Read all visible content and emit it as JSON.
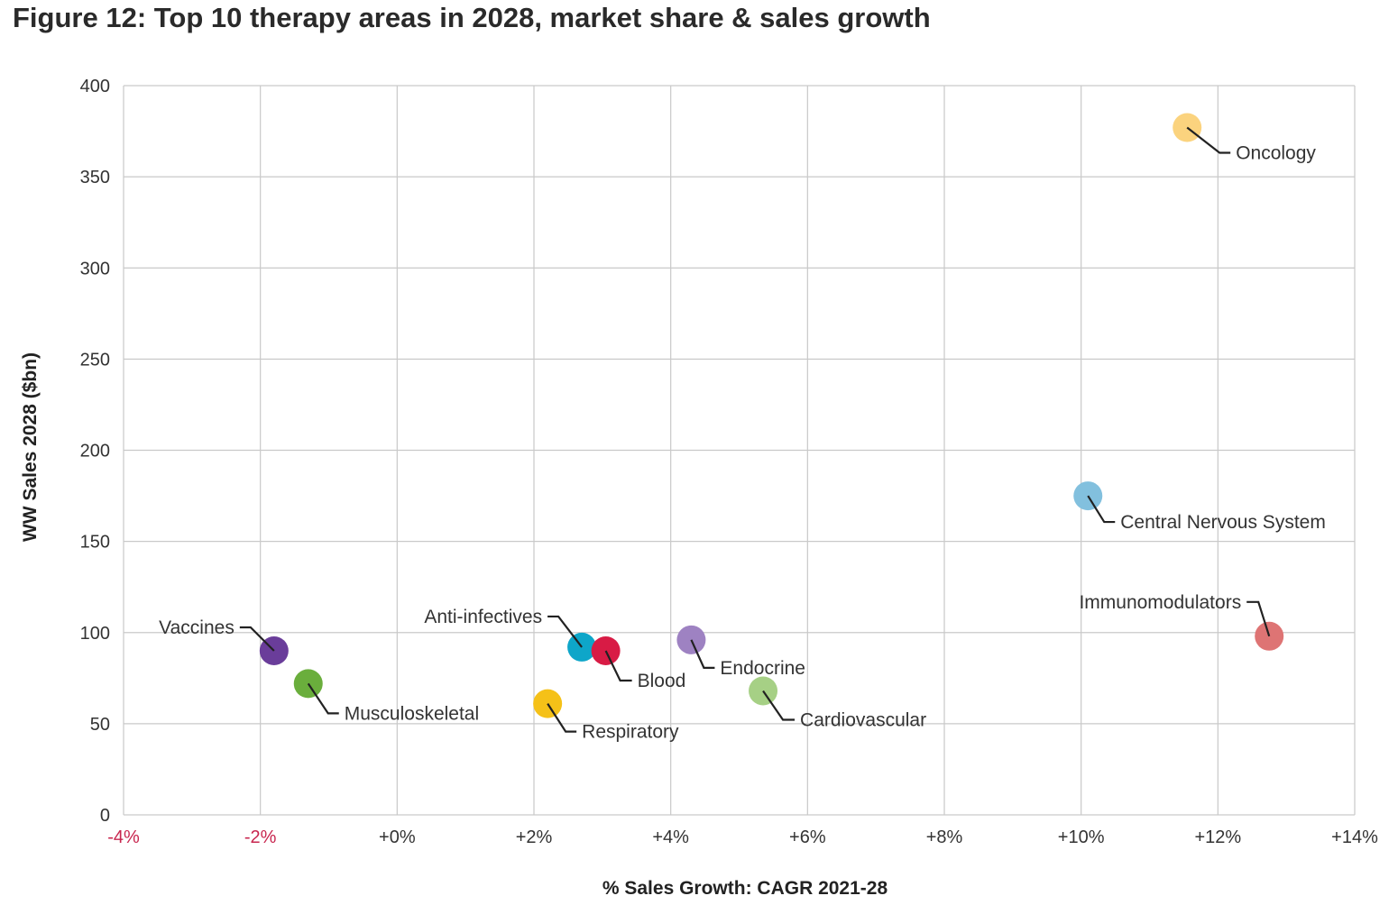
{
  "figure": {
    "title": "Figure 12: Top 10 therapy areas in 2028, market share & sales growth"
  },
  "chart_data": {
    "type": "scatter",
    "title": "Figure 12: Top 10 therapy areas in 2028, market share & sales growth",
    "xlabel": "% Sales Growth: CAGR 2021-28",
    "ylabel": "WW Sales 2028 ($bn)",
    "xlim": [
      -4,
      14
    ],
    "ylim": [
      0,
      400
    ],
    "grid": true,
    "x_ticks": [
      -4,
      -2,
      0,
      2,
      4,
      6,
      8,
      10,
      12,
      14
    ],
    "x_tick_labels": [
      "-4%",
      "-2%",
      "+0%",
      "+2%",
      "+4%",
      "+6%",
      "+8%",
      "+10%",
      "+12%",
      "+14%"
    ],
    "y_ticks": [
      0,
      50,
      100,
      150,
      200,
      250,
      300,
      350,
      400
    ],
    "y_tick_labels": [
      "0",
      "50",
      "100",
      "150",
      "200",
      "250",
      "300",
      "350",
      "400"
    ],
    "negative_tick_color": "#c8264f",
    "points": [
      {
        "label": "Oncology",
        "x": 11.55,
        "y": 377,
        "color": "#fbd37e"
      },
      {
        "label": "Central Nervous System",
        "x": 10.1,
        "y": 175,
        "color": "#82c0de"
      },
      {
        "label": "Immunomodulators",
        "x": 12.75,
        "y": 98,
        "color": "#de7474"
      },
      {
        "label": "Vaccines",
        "x": -1.8,
        "y": 90,
        "color": "#6a3d9a"
      },
      {
        "label": "Musculoskeletal",
        "x": -1.3,
        "y": 72,
        "color": "#6aae3c"
      },
      {
        "label": "Anti-infectives",
        "x": 2.7,
        "y": 92,
        "color": "#0ea6c9"
      },
      {
        "label": "Blood",
        "x": 3.05,
        "y": 90,
        "color": "#d81b45"
      },
      {
        "label": "Respiratory",
        "x": 2.2,
        "y": 61,
        "color": "#f5c118"
      },
      {
        "label": "Endocrine",
        "x": 4.3,
        "y": 96,
        "color": "#9e82c2"
      },
      {
        "label": "Cardiovascular",
        "x": 5.35,
        "y": 68,
        "color": "#a6d085"
      }
    ]
  }
}
